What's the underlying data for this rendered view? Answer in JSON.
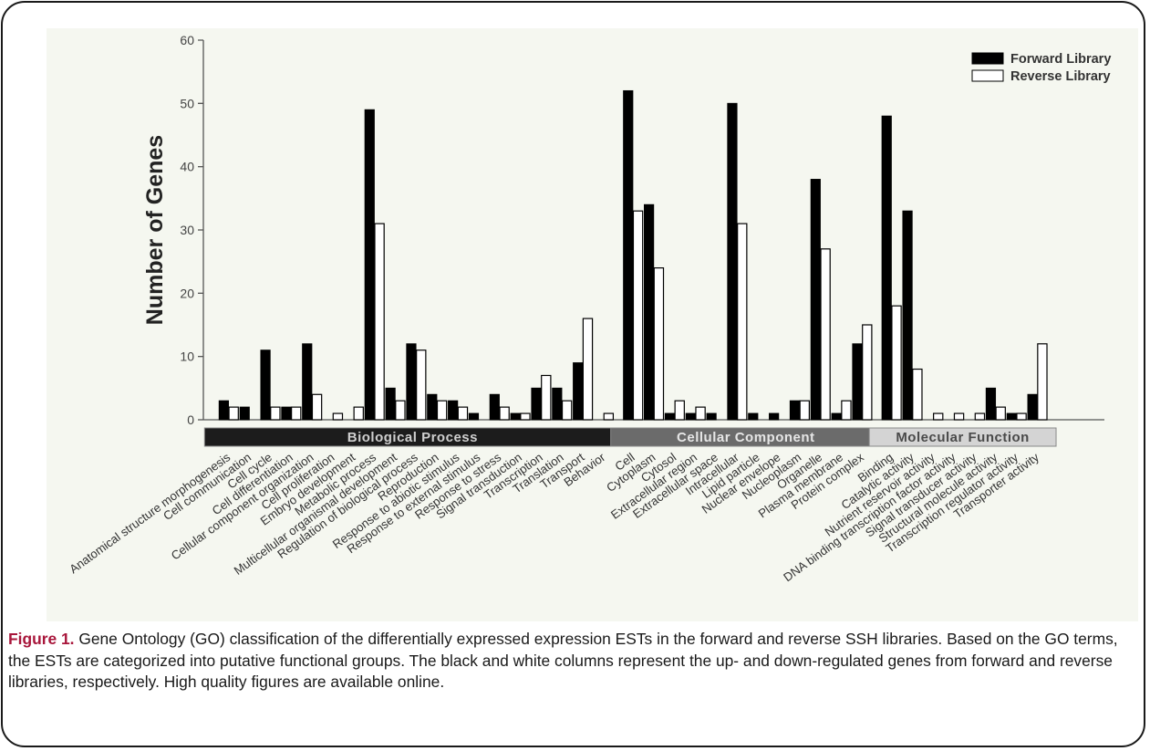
{
  "chart_data": {
    "type": "bar",
    "ylabel": "Number of Genes",
    "ylim": [
      0,
      60
    ],
    "yticks": [
      0,
      10,
      20,
      30,
      40,
      50,
      60
    ],
    "legend_position": "top-right",
    "series": [
      {
        "name": "Forward Library",
        "color": "#000000"
      },
      {
        "name": "Reverse Library",
        "color": "#ffffff"
      }
    ],
    "groups": [
      {
        "name": "Biological Process",
        "band_color": "#1c1c1c",
        "text_color": "#cfcfcf",
        "categories": [
          {
            "label": "Anatomical structure morphogenesis",
            "values": [
              3,
              2
            ]
          },
          {
            "label": "Cell communication",
            "values": [
              2,
              0
            ]
          },
          {
            "label": "Cell cycle",
            "values": [
              11,
              2
            ]
          },
          {
            "label": "Cell differentiation",
            "values": [
              2,
              2
            ]
          },
          {
            "label": "Cellular component organization",
            "values": [
              12,
              4
            ]
          },
          {
            "label": "Cell proliferation",
            "values": [
              0,
              1
            ]
          },
          {
            "label": "Embryo development",
            "values": [
              0,
              2
            ]
          },
          {
            "label": "Metabolic process",
            "values": [
              49,
              31
            ]
          },
          {
            "label": "Multicellular organismal development",
            "values": [
              5,
              3
            ]
          },
          {
            "label": "Regulation of biological process",
            "values": [
              12,
              11
            ]
          },
          {
            "label": "Reproduction",
            "values": [
              4,
              3
            ]
          },
          {
            "label": "Response to abiotic stimulus",
            "values": [
              3,
              2
            ]
          },
          {
            "label": "Response to external stimulus",
            "values": [
              1,
              0
            ]
          },
          {
            "label": "Response to stress",
            "values": [
              4,
              2
            ]
          },
          {
            "label": "Signal transduction",
            "values": [
              1,
              1
            ]
          },
          {
            "label": "Transcription",
            "values": [
              5,
              7
            ]
          },
          {
            "label": "Translation",
            "values": [
              5,
              3
            ]
          },
          {
            "label": "Transport",
            "values": [
              9,
              16
            ]
          },
          {
            "label": "Behavior",
            "values": [
              0,
              1
            ]
          }
        ]
      },
      {
        "name": "Cellular Component",
        "band_color": "#6b6b6b",
        "text_color": "#e6e6e6",
        "categories": [
          {
            "label": "Cell",
            "values": [
              52,
              33
            ]
          },
          {
            "label": "Cytoplasm",
            "values": [
              34,
              24
            ]
          },
          {
            "label": "Cytosol",
            "values": [
              1,
              3
            ]
          },
          {
            "label": "Extracellular region",
            "values": [
              1,
              2
            ]
          },
          {
            "label": "Extracellular space",
            "values": [
              1,
              0
            ]
          },
          {
            "label": "Intracellular",
            "values": [
              50,
              31
            ]
          },
          {
            "label": "Lipid particle",
            "values": [
              1,
              0
            ]
          },
          {
            "label": "Nuclear envelope",
            "values": [
              1,
              0
            ]
          },
          {
            "label": "Nucleoplasm",
            "values": [
              3,
              3
            ]
          },
          {
            "label": "Organelle",
            "values": [
              38,
              27
            ]
          },
          {
            "label": "Plasma membrane",
            "values": [
              1,
              3
            ]
          },
          {
            "label": "Protein complex",
            "values": [
              12,
              15
            ]
          }
        ]
      },
      {
        "name": "Molecular Function",
        "band_color": "#d4d4d4",
        "text_color": "#4a4a4a",
        "categories": [
          {
            "label": "Binding",
            "values": [
              48,
              18
            ]
          },
          {
            "label": "Catalytic activity",
            "values": [
              33,
              8
            ]
          },
          {
            "label": "Nutrient reservoir activity",
            "values": [
              0,
              1
            ]
          },
          {
            "label": "DNA binding transcription factor activity",
            "values": [
              0,
              1
            ]
          },
          {
            "label": "Signal transducer activity",
            "values": [
              0,
              1
            ]
          },
          {
            "label": "Structural molecule activity",
            "values": [
              5,
              2
            ]
          },
          {
            "label": "Transcription regulator activity",
            "values": [
              1,
              1
            ]
          },
          {
            "label": "Transporter activity",
            "values": [
              4,
              12
            ]
          }
        ]
      }
    ]
  },
  "caption": {
    "label": "Figure 1.",
    "text": " Gene Ontology (GO) classification of the differentially expressed expression ESTs in the forward and reverse SSH libraries. Based on the GO terms, the ESTs are categorized into putative functional groups. The black and white columns represent the up- and down-regulated genes from forward and reverse libraries, respectively. High quality figures are available online."
  }
}
